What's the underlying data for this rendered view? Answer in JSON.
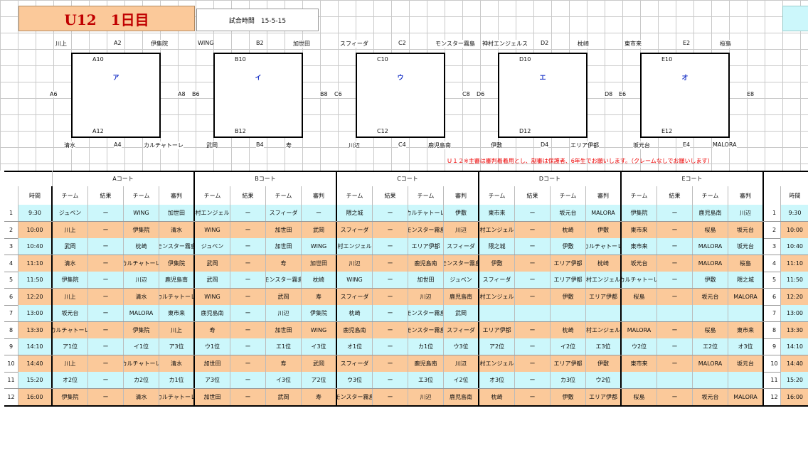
{
  "title": "U12　1日目",
  "match_time_label": "試合時間　15-5-15",
  "courts": [
    {
      "letter": "ア",
      "top_label": "A10",
      "bottom_label": "A12",
      "upper_labels": [
        "川上",
        "A2",
        "伊集院"
      ],
      "left_label": "A6",
      "right_label": "A8",
      "lower_labels": [
        "清水",
        "A4",
        "カルチャトーレ"
      ]
    },
    {
      "letter": "イ",
      "top_label": "B10",
      "bottom_label": "B12",
      "upper_labels": [
        "WING",
        "B2",
        "加世田"
      ],
      "left_label": "B6",
      "right_label": "B8",
      "lower_labels": [
        "武岡",
        "B4",
        "寿"
      ]
    },
    {
      "letter": "ウ",
      "top_label": "C10",
      "bottom_label": "C12",
      "upper_labels": [
        "スフィーダ",
        "C2",
        "モンスター霧島"
      ],
      "left_label": "C6",
      "right_label": "C8",
      "lower_labels": [
        "川辺",
        "C4",
        "鹿児島南"
      ]
    },
    {
      "letter": "エ",
      "top_label": "D10",
      "bottom_label": "D12",
      "upper_labels": [
        "神村エンジェルス",
        "D2",
        "枕崎"
      ],
      "left_label": "D6",
      "right_label": "D8",
      "lower_labels": [
        "伊敷",
        "D4",
        "エリア伊都"
      ]
    },
    {
      "letter": "オ",
      "top_label": "E10",
      "bottom_label": "E12",
      "upper_labels": [
        "東市来",
        "E2",
        "桜島"
      ],
      "left_label": "E6",
      "right_label": "E8",
      "lower_labels": [
        "坂元台",
        "E4",
        "MALORA"
      ]
    }
  ],
  "note": "Ｕ１２※主審は審判着着用とし、副審は保護者、6年生でお願いします。（クレームなしでお願いします）",
  "court_headers": [
    "Aコート",
    "Bコート",
    "Cコート",
    "Dコート",
    "Eコート"
  ],
  "col_time": "時間",
  "col_team": "チーム",
  "col_result": "結果",
  "col_ref": "審判",
  "colors": {
    "peach": "#fbc99a",
    "cyan": "#ccf7fb",
    "red": "#c00000",
    "blue": "#1d36c8"
  },
  "rows": [
    {
      "n": "1",
      "time": "9:30",
      "bg": "cyan",
      "cells": [
        [
          "ジュベン",
          "ー",
          "WING",
          "加世田"
        ],
        [
          "神村エンジェルス",
          "ー",
          "スフィーダ",
          "ー"
        ],
        [
          "隈之城",
          "ー",
          "カルチャトーレ",
          "伊敷"
        ],
        [
          "東市来",
          "ー",
          "坂元台",
          "MALORA"
        ],
        [
          "伊集院",
          "ー",
          "鹿児島南",
          "川辺"
        ]
      ]
    },
    {
      "n": "2",
      "time": "10:00",
      "bg": "peach",
      "cells": [
        [
          "川上",
          "ー",
          "伊集院",
          "清水"
        ],
        [
          "WING",
          "ー",
          "加世田",
          "武岡"
        ],
        [
          "スフィーダ",
          "ー",
          "モンスター霧島",
          "川辺"
        ],
        [
          "神村エンジェルス",
          "ー",
          "枕崎",
          "伊敷"
        ],
        [
          "東市来",
          "ー",
          "桜島",
          "坂元台"
        ]
      ]
    },
    {
      "n": "3",
      "time": "10:40",
      "bg": "cyan",
      "cells": [
        [
          "武岡",
          "ー",
          "枕崎",
          "モンスター霧島"
        ],
        [
          "ジュベン",
          "ー",
          "加世田",
          "WING"
        ],
        [
          "神村エンジェルス",
          "ー",
          "エリア伊都",
          "スフィーダ"
        ],
        [
          "隈之城",
          "ー",
          "伊敷",
          "カルチャトーレ"
        ],
        [
          "東市来",
          "ー",
          "MALORA",
          "坂元台"
        ]
      ]
    },
    {
      "n": "4",
      "time": "11:10",
      "bg": "peach",
      "cells": [
        [
          "清水",
          "ー",
          "カルチャトーレ",
          "伊集院"
        ],
        [
          "武岡",
          "ー",
          "寿",
          "加世田"
        ],
        [
          "川辺",
          "ー",
          "鹿児島南",
          "モンスター霧島"
        ],
        [
          "伊敷",
          "ー",
          "エリア伊都",
          "枕崎"
        ],
        [
          "坂元台",
          "ー",
          "MALORA",
          "桜島"
        ]
      ]
    },
    {
      "n": "5",
      "time": "11:50",
      "bg": "cyan",
      "cells": [
        [
          "伊集院",
          "ー",
          "川辺",
          "鹿児島南"
        ],
        [
          "武岡",
          "ー",
          "モンスター霧島",
          "枕崎"
        ],
        [
          "WING",
          "ー",
          "加世田",
          "ジュベン"
        ],
        [
          "スフィーダ",
          "ー",
          "エリア伊都",
          "神村エンジェルス"
        ],
        [
          "カルチャトーレ",
          "ー",
          "伊敷",
          "隈之城"
        ]
      ]
    },
    {
      "n": "6",
      "time": "12:20",
      "bg": "peach",
      "cells": [
        [
          "川上",
          "ー",
          "清水",
          "カルチャトーレ"
        ],
        [
          "WING",
          "ー",
          "武岡",
          "寿"
        ],
        [
          "スフィーダ",
          "ー",
          "川辺",
          "鹿児島南"
        ],
        [
          "神村エンジェルス",
          "ー",
          "伊敷",
          "エリア伊都"
        ],
        [
          "桜島",
          "ー",
          "坂元台",
          "MALORA"
        ]
      ]
    },
    {
      "n": "7",
      "time": "13:00",
      "bg": "cyan",
      "cells": [
        [
          "坂元台",
          "ー",
          "MALORA",
          "東市来"
        ],
        [
          "鹿児島南",
          "ー",
          "川辺",
          "伊集院"
        ],
        [
          "枕崎",
          "ー",
          "モンスター霧島",
          "武岡"
        ],
        [
          "",
          "",
          "",
          ""
        ],
        [
          "",
          "",
          "",
          ""
        ]
      ]
    },
    {
      "n": "8",
      "time": "13:30",
      "bg": "peach",
      "cells": [
        [
          "カルチャトーレ",
          "ー",
          "伊集院",
          "川上"
        ],
        [
          "寿",
          "ー",
          "加世田",
          "WING"
        ],
        [
          "鹿児島南",
          "ー",
          "モンスター霧島",
          "スフィーダ"
        ],
        [
          "エリア伊都",
          "ー",
          "枕崎",
          "神村エンジェルス"
        ],
        [
          "MALORA",
          "ー",
          "桜島",
          "東市来"
        ]
      ]
    },
    {
      "n": "9",
      "time": "14:10",
      "bg": "cyan",
      "cells": [
        [
          "ア1位",
          "ー",
          "イ1位",
          "ア3位"
        ],
        [
          "ウ1位",
          "ー",
          "エ1位",
          "イ3位"
        ],
        [
          "オ1位",
          "ー",
          "カ1位",
          "ウ3位"
        ],
        [
          "ア2位",
          "ー",
          "イ2位",
          "エ3位"
        ],
        [
          "ウ2位",
          "ー",
          "エ2位",
          "オ3位"
        ]
      ]
    },
    {
      "n": "10",
      "time": "14:40",
      "bg": "peach",
      "cells": [
        [
          "川上",
          "ー",
          "カルチャトーレ",
          "清水"
        ],
        [
          "加世田",
          "ー",
          "寿",
          "武岡"
        ],
        [
          "スフィーダ",
          "ー",
          "鹿児島南",
          "川辺"
        ],
        [
          "神村エンジェルス",
          "ー",
          "エリア伊都",
          "伊敷"
        ],
        [
          "東市来",
          "ー",
          "MALORA",
          "坂元台"
        ]
      ]
    },
    {
      "n": "11",
      "time": "15:20",
      "bg": "cyan",
      "cells": [
        [
          "オ2位",
          "ー",
          "カ2位",
          "カ1位"
        ],
        [
          "ア3位",
          "ー",
          "イ3位",
          "ア2位"
        ],
        [
          "ウ3位",
          "ー",
          "エ3位",
          "イ2位"
        ],
        [
          "オ3位",
          "ー",
          "カ3位",
          "ウ2位"
        ],
        [
          "",
          "",
          "",
          ""
        ]
      ]
    },
    {
      "n": "12",
      "time": "16:00",
      "bg": "peach",
      "cells": [
        [
          "伊集院",
          "ー",
          "清水",
          "カルチャトーレ"
        ],
        [
          "加世田",
          "ー",
          "武岡",
          "寿"
        ],
        [
          "モンスター霧島",
          "ー",
          "川辺",
          "鹿児島南"
        ],
        [
          "枕崎",
          "ー",
          "伊敷",
          "エリア伊都"
        ],
        [
          "桜島",
          "ー",
          "坂元台",
          "MALORA"
        ]
      ]
    }
  ]
}
